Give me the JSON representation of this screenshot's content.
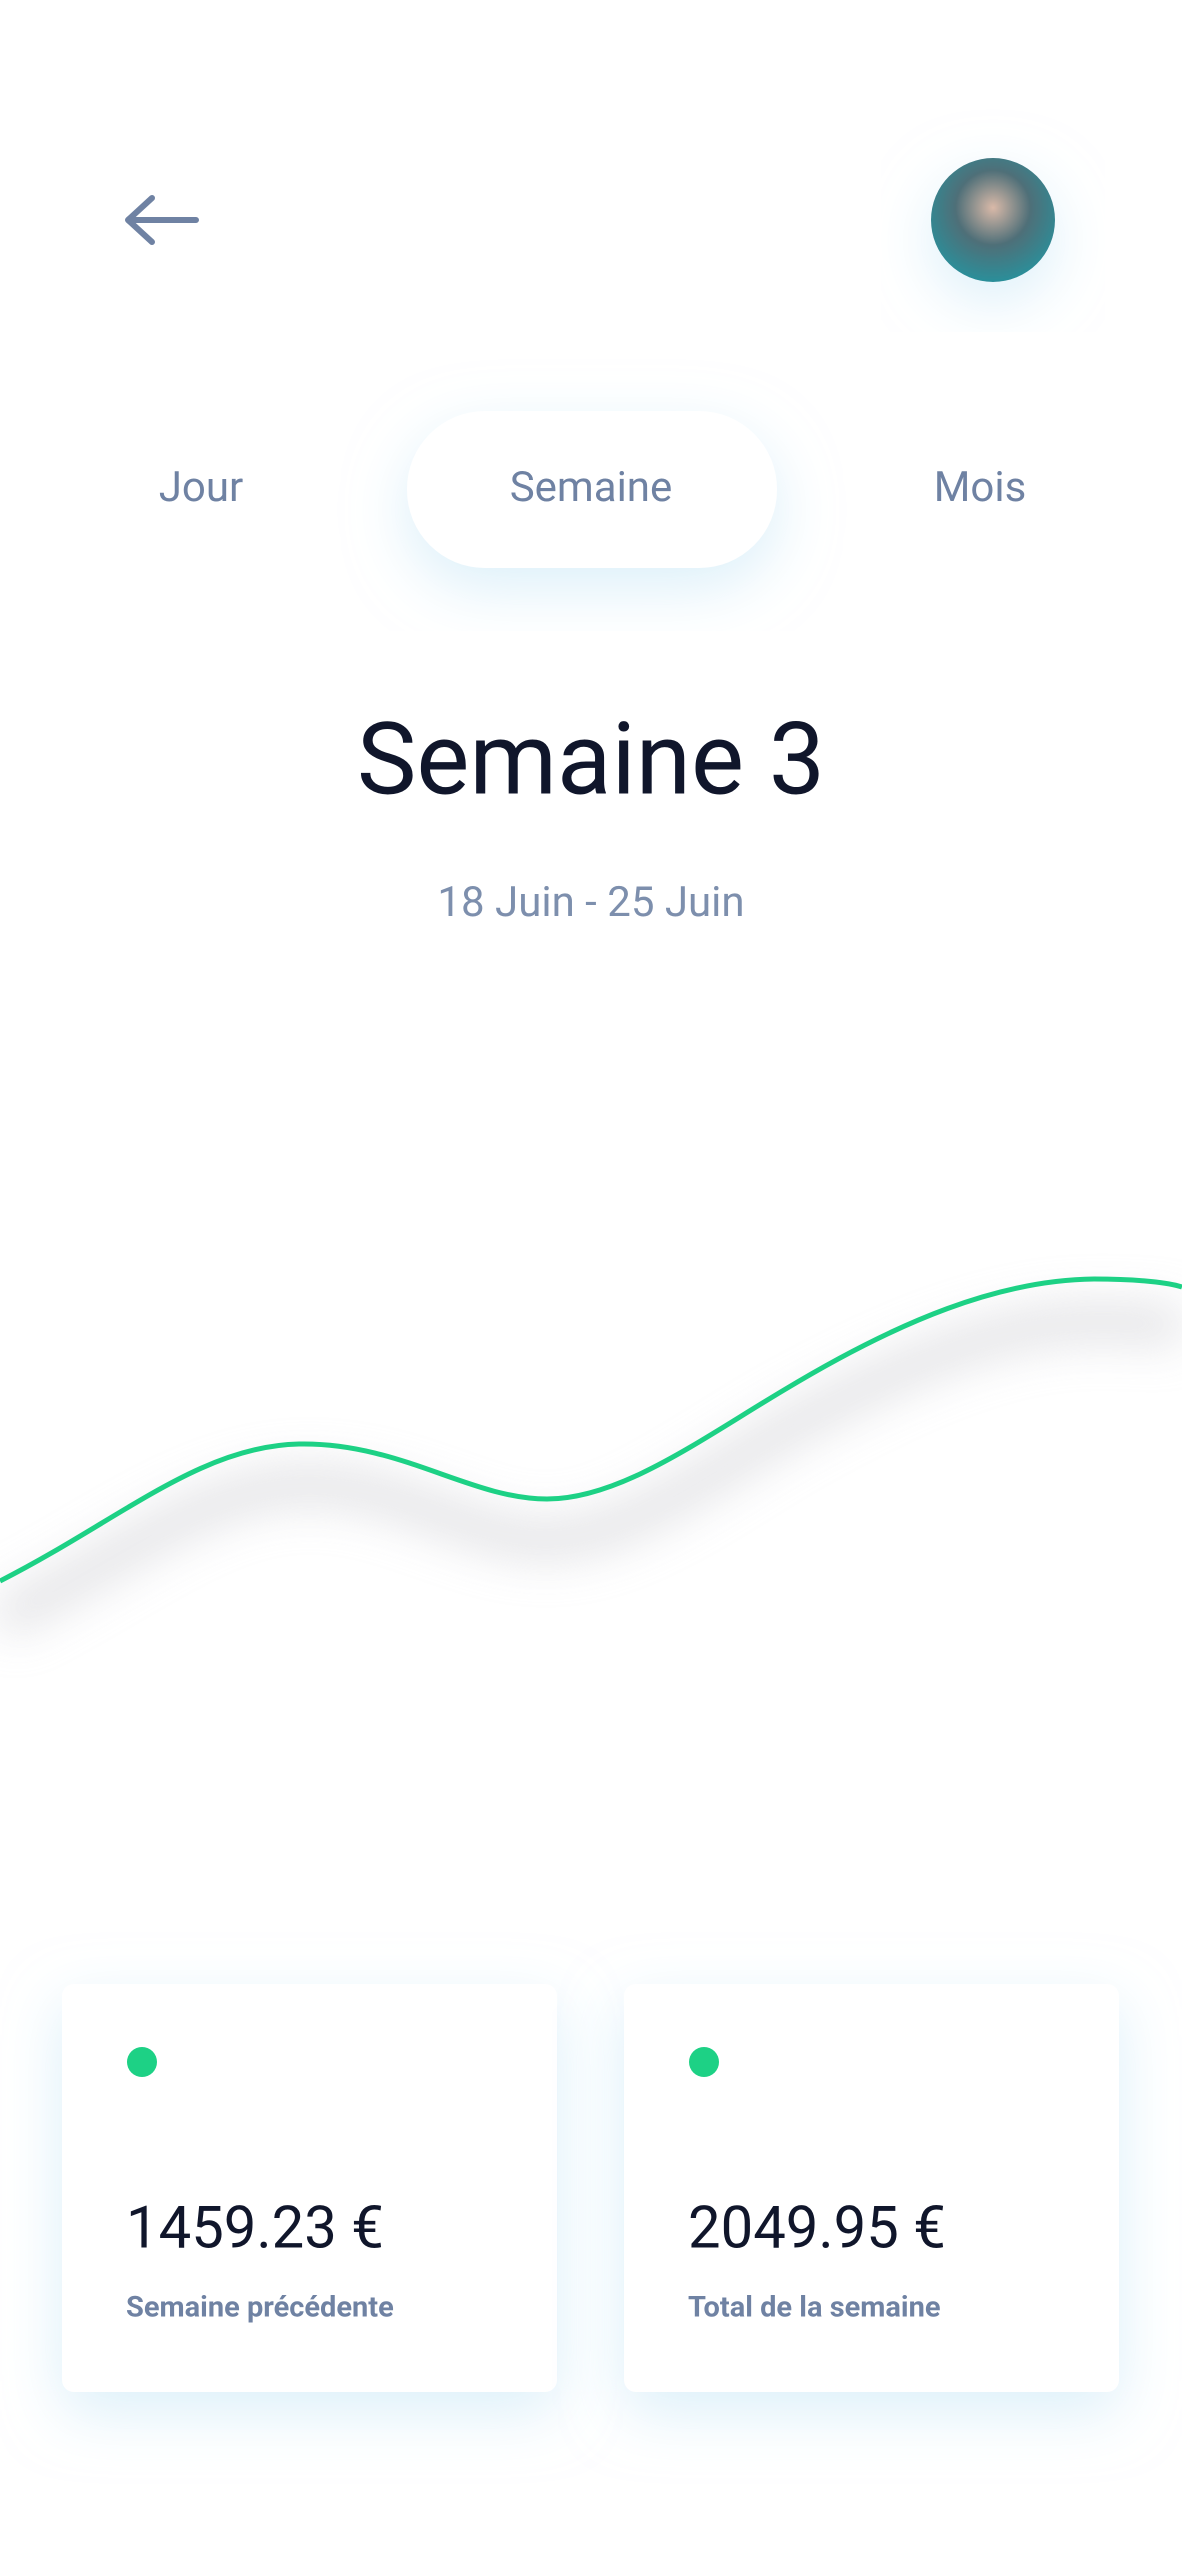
{
  "tabs": [
    "Jour",
    "Semaine",
    "Mois"
  ],
  "active_tab": 1,
  "title": "Semaine 3",
  "date_range": "18 Juin - 25 Juin",
  "cards": [
    {
      "amount": "1459.23 €",
      "label": "Semaine précédente"
    },
    {
      "amount": "2049.95 €",
      "label": "Total de la semaine"
    }
  ]
}
